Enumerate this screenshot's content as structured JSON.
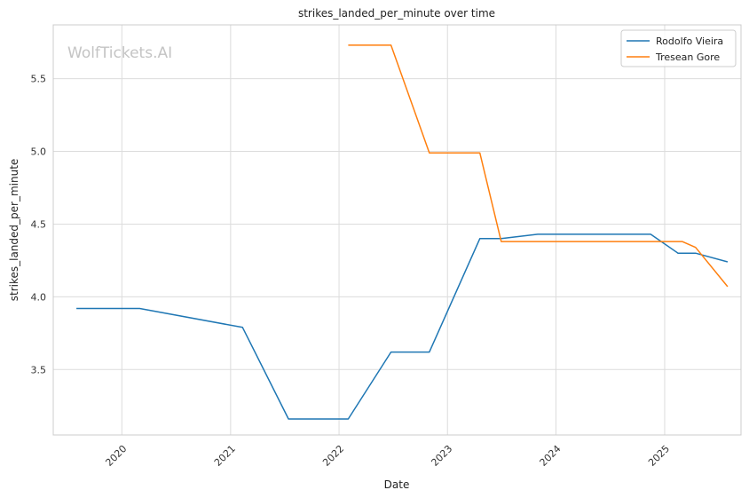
{
  "chart_data": {
    "type": "line",
    "title": "strikes_landed_per_minute over time",
    "xlabel": "Date",
    "ylabel": "strikes_landed_per_minute",
    "x_ticks": [
      "2020",
      "2021",
      "2022",
      "2023",
      "2024",
      "2025"
    ],
    "y_ticks": [
      "3.5",
      "4.0",
      "4.5",
      "5.0",
      "5.5"
    ],
    "xlim": [
      "2019-05-15",
      "2025-09-15"
    ],
    "ylim": [
      3.05,
      5.87
    ],
    "grid": true,
    "legend_position": "top-right",
    "watermark": "WolfTickets.AI",
    "series": [
      {
        "name": "Rodolfo Vieira",
        "color": "#1f77b4",
        "points": [
          {
            "x": "2019-08-01",
            "y": 3.92
          },
          {
            "x": "2020-03-01",
            "y": 3.92
          },
          {
            "x": "2021-02-10",
            "y": 3.79
          },
          {
            "x": "2021-07-15",
            "y": 3.16
          },
          {
            "x": "2022-02-01",
            "y": 3.16
          },
          {
            "x": "2022-06-25",
            "y": 3.62
          },
          {
            "x": "2022-11-01",
            "y": 3.62
          },
          {
            "x": "2023-04-20",
            "y": 4.4
          },
          {
            "x": "2023-07-01",
            "y": 4.4
          },
          {
            "x": "2023-11-01",
            "y": 4.43
          },
          {
            "x": "2024-11-15",
            "y": 4.43
          },
          {
            "x": "2025-02-15",
            "y": 4.3
          },
          {
            "x": "2025-04-15",
            "y": 4.3
          },
          {
            "x": "2025-08-01",
            "y": 4.24
          }
        ]
      },
      {
        "name": "Tresean Gore",
        "color": "#ff7f0e",
        "points": [
          {
            "x": "2022-02-01",
            "y": 5.73
          },
          {
            "x": "2022-06-25",
            "y": 5.73
          },
          {
            "x": "2022-11-01",
            "y": 4.99
          },
          {
            "x": "2023-04-20",
            "y": 4.99
          },
          {
            "x": "2023-07-01",
            "y": 4.38
          },
          {
            "x": "2025-03-01",
            "y": 4.38
          },
          {
            "x": "2025-04-15",
            "y": 4.34
          },
          {
            "x": "2025-08-01",
            "y": 4.07
          }
        ]
      }
    ]
  }
}
